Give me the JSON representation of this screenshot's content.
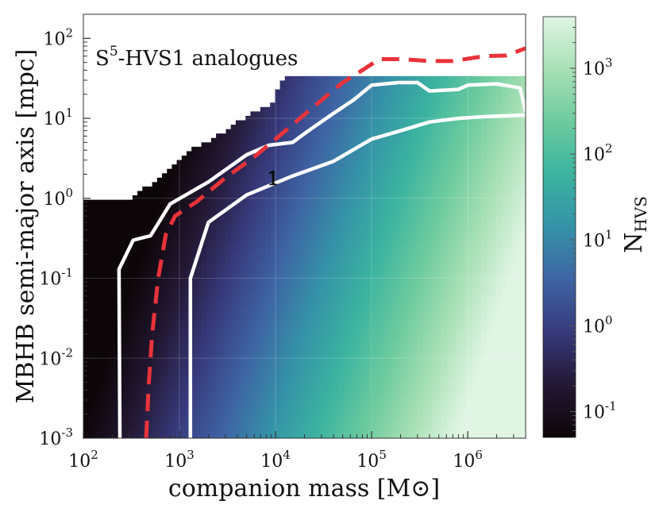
{
  "chart_data": {
    "type": "heatmap",
    "annotation": "S5-HVS1 analogues",
    "annotation_parts": {
      "base": "S",
      "sup": "5",
      "rest": "-HVS1 analogues"
    },
    "contour_label": "1",
    "xlabel": "companion mass [M⊙]",
    "ylabel": "MBHB semi-major axis [mpc]",
    "colorbar_label": {
      "base": "N",
      "sub": "HVS"
    },
    "x_scale": "log",
    "y_scale": "log",
    "xlim": [
      100,
      4000000
    ],
    "ylim": [
      0.001,
      200
    ],
    "x_ticks": [
      {
        "base": "10",
        "exp": "2",
        "value": 100
      },
      {
        "base": "10",
        "exp": "3",
        "value": 1000
      },
      {
        "base": "10",
        "exp": "4",
        "value": 10000
      },
      {
        "base": "10",
        "exp": "5",
        "value": 100000
      },
      {
        "base": "10",
        "exp": "6",
        "value": 1000000
      }
    ],
    "y_ticks": [
      {
        "base": "10",
        "exp": "-3",
        "value": 0.001
      },
      {
        "base": "10",
        "exp": "-2",
        "value": 0.01
      },
      {
        "base": "10",
        "exp": "-1",
        "value": 0.1
      },
      {
        "base": "10",
        "exp": "0",
        "value": 1
      },
      {
        "base": "10",
        "exp": "1",
        "value": 10
      },
      {
        "base": "10",
        "exp": "2",
        "value": 100
      }
    ],
    "colorbar_ticks": [
      {
        "base": "10",
        "exp": "-1",
        "value": 0.1
      },
      {
        "base": "10",
        "exp": "0",
        "value": 1
      },
      {
        "base": "10",
        "exp": "1",
        "value": 10
      },
      {
        "base": "10",
        "exp": "2",
        "value": 100
      },
      {
        "base": "10",
        "exp": "3",
        "value": 1000
      }
    ],
    "colorbar_range": [
      0.05,
      4000
    ],
    "colormap": [
      "#0d0608",
      "#231733",
      "#373a7c",
      "#3e64a4",
      "#3592a8",
      "#3bb3a0",
      "#6ccb9e",
      "#a8e0b5",
      "#e0f5e4"
    ],
    "grid": true,
    "series": [
      {
        "style": "white-solid",
        "points": [
          [
            240,
            0.001
          ],
          [
            235,
            0.13
          ],
          [
            330,
            0.3
          ],
          [
            500,
            0.34
          ],
          [
            800,
            0.85
          ],
          [
            2000,
            1.6
          ],
          [
            5000,
            3.5
          ],
          [
            8500,
            4.6
          ],
          [
            15000,
            5.0
          ],
          [
            22000,
            7.0
          ],
          [
            40000,
            11.5
          ],
          [
            65000,
            17.0
          ],
          [
            100000,
            26.0
          ],
          [
            190000,
            28.0
          ],
          [
            300000,
            28.0
          ],
          [
            400000,
            22.0
          ],
          [
            800000,
            23.0
          ],
          [
            1000000,
            26.0
          ],
          [
            2000000,
            27.0
          ],
          [
            3500000,
            24.0
          ],
          [
            4000000,
            12.0
          ]
        ]
      },
      {
        "style": "white-solid",
        "points": [
          [
            1300,
            0.001
          ],
          [
            1300,
            0.1
          ],
          [
            2000,
            0.5
          ],
          [
            5000,
            1.1
          ],
          [
            15000,
            1.9
          ],
          [
            40000,
            2.9
          ],
          [
            100000,
            5.5
          ],
          [
            200000,
            7.0
          ],
          [
            400000,
            9.0
          ],
          [
            800000,
            10.0
          ],
          [
            1500000,
            10.5
          ],
          [
            4000000,
            11.0
          ]
        ]
      },
      {
        "style": "red-dashed",
        "points": [
          [
            450,
            0.001
          ],
          [
            480,
            0.005
          ],
          [
            520,
            0.02
          ],
          [
            600,
            0.1
          ],
          [
            720,
            0.35
          ],
          [
            900,
            0.6
          ],
          [
            1500,
            0.9
          ],
          [
            3000,
            1.8
          ],
          [
            6000,
            3.3
          ],
          [
            10000,
            5.5
          ],
          [
            25000,
            14.0
          ],
          [
            50000,
            28.0
          ],
          [
            80000,
            40.0
          ],
          [
            120000,
            55.0
          ],
          [
            200000,
            55.0
          ],
          [
            400000,
            52.0
          ],
          [
            700000,
            52.0
          ],
          [
            1500000,
            60.0
          ],
          [
            2500000,
            61.0
          ],
          [
            4000000,
            75.0
          ]
        ]
      }
    ],
    "black_region_upper_bound": [
      [
        100,
        1.0
      ],
      [
        300,
        1.0
      ],
      [
        500,
        1.5
      ],
      [
        700,
        2.0
      ],
      [
        1000,
        3.2
      ],
      [
        1500,
        4.5
      ],
      [
        2500,
        6.0
      ],
      [
        4000,
        9.0
      ],
      [
        6000,
        12.0
      ],
      [
        9000,
        15.0
      ],
      [
        12000,
        32.0
      ],
      [
        4000000,
        32.0
      ]
    ],
    "heatmap_rule": "N_HVS increases with companion mass and decreases toward the upper boundary; log10(N) approx -1.6 + 1.25*log10(M/100) - 0.35*log10(a/0.01)"
  }
}
